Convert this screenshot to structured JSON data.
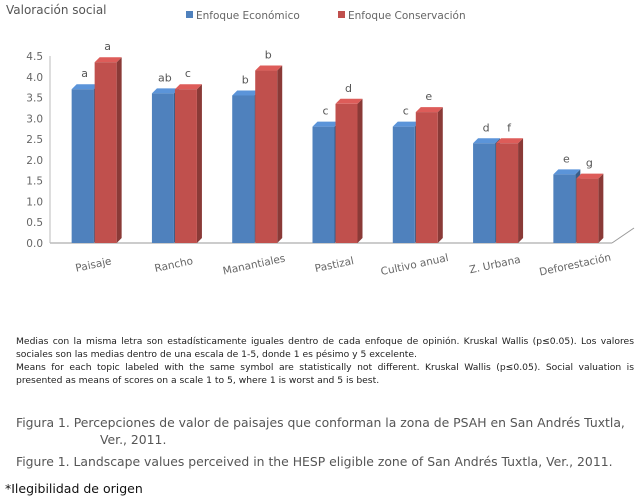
{
  "chart_data": {
    "type": "bar",
    "title": "Valoración social",
    "categories": [
      "Paisaje",
      "Rancho",
      "Manantiales",
      "Pastizal",
      "Cultivo anual",
      "Z. Urbana",
      "Deforestación"
    ],
    "series": [
      {
        "name": "Enfoque Económico",
        "color": "#4f81bd",
        "values": [
          3.7,
          3.6,
          3.55,
          2.8,
          2.8,
          2.4,
          1.65
        ],
        "labels": [
          "a",
          "ab",
          "b",
          "c",
          "c",
          "d",
          "e"
        ]
      },
      {
        "name": "Enfoque Conservación",
        "color": "#c0504d",
        "values": [
          4.35,
          3.7,
          4.15,
          3.35,
          3.15,
          2.4,
          1.55
        ],
        "labels": [
          "a",
          "c",
          "b",
          "d",
          "e",
          "f",
          "g"
        ]
      }
    ],
    "ylim": [
      0,
      4.5
    ],
    "yticks": [
      "0.0",
      "0.5",
      "1.0",
      "1.5",
      "2.0",
      "2.5",
      "3.0",
      "3.5",
      "4.0",
      "4.5"
    ],
    "legend": "top",
    "grid": false
  },
  "notes": {
    "es": "Medias con la misma letra son estadísticamente iguales dentro de cada enfoque de opinión. Kruskal Wallis (p≤0.05). Los valores sociales son las medias dentro de una escala de 1-5, donde 1 es pésimo y 5 excelente.",
    "en": "Means for each topic labeled with the same symbol are statistically not different. Kruskal Wallis (p≤0.05). Social valuation is presented as means of scores on a scale 1 to 5, where 1 is worst and 5 is best."
  },
  "figure": {
    "es_line1": "Figura 1. Percepciones de valor de paisajes que conforman la zona de PSAH en San Andrés Tuxtla,",
    "es_line2": "Ver., 2011.",
    "en": "Figure 1. Landscape values perceived in the HESP eligible zone of San Andrés Tuxtla, Ver., 2011."
  },
  "footnote": "*Ilegibilidad de origen"
}
